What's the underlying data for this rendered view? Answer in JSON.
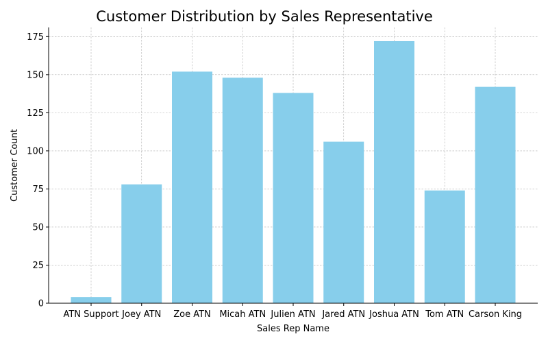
{
  "chart_data": {
    "type": "bar",
    "title": "Customer Distribution by Sales Representative",
    "xlabel": "Sales Rep Name",
    "ylabel": "Customer Count",
    "categories": [
      "ATN Support",
      "Joey ATN",
      "Zoe ATN",
      "Micah ATN",
      "Julien ATN",
      "Jared ATN",
      "Joshua ATN",
      "Tom ATN",
      "Carson King"
    ],
    "values": [
      4,
      78,
      152,
      148,
      138,
      106,
      172,
      74,
      142
    ],
    "ylim": [
      0,
      181
    ],
    "yticks": [
      0,
      25,
      50,
      75,
      100,
      125,
      150,
      175
    ],
    "grid": true,
    "bar_color": "#87CEEB"
  }
}
